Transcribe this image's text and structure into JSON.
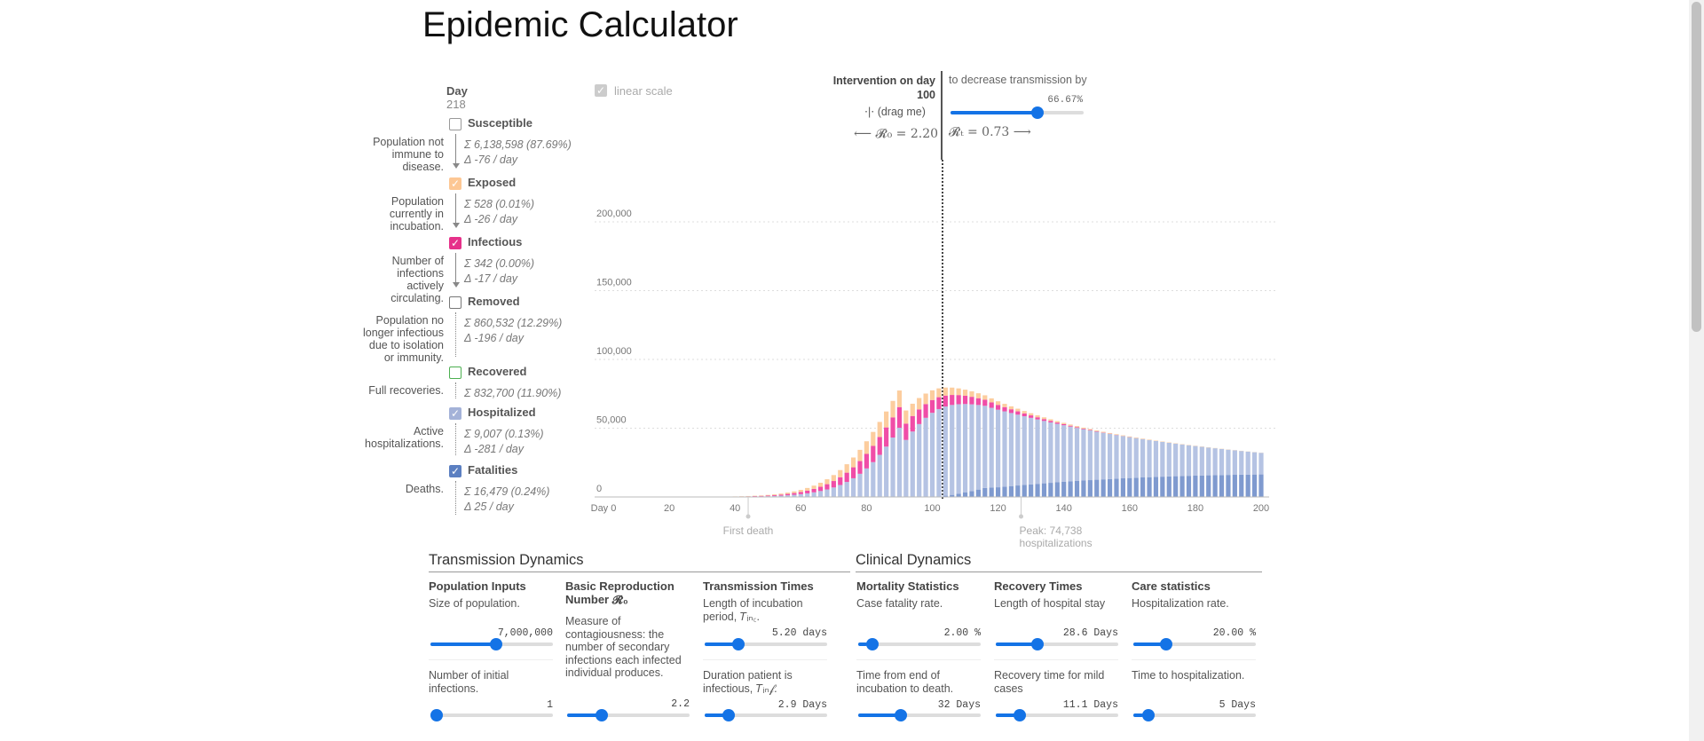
{
  "title": "Epidemic Calculator",
  "day": {
    "label": "Day",
    "value": "218"
  },
  "compartments": [
    {
      "name": "Susceptible",
      "desc": "Population not immune to disease.",
      "total": "6,138,598 (87.69%)",
      "delta": "-76 / day",
      "checked": false,
      "color": "#ffffff",
      "border": "#999999"
    },
    {
      "name": "Exposed",
      "desc": "Population currently in incubation.",
      "total": "528 (0.01%)",
      "delta": "-26 / day",
      "checked": true,
      "color": "#fdc794",
      "border": "#fdc794"
    },
    {
      "name": "Infectious",
      "desc": "Number of infections actively circulating.",
      "total": "342 (0.00%)",
      "delta": "-17 / day",
      "checked": true,
      "color": "#e6318a",
      "border": "#e6318a"
    },
    {
      "name": "Removed",
      "desc": "Population no longer infectious due to isolation or immunity.",
      "total": "860,532 (12.29%)",
      "delta": "-196 / day",
      "checked": false,
      "color": "#ffffff",
      "border": "#777777"
    },
    {
      "name": "Recovered",
      "desc": "Full recoveries.",
      "total": "832,700 (11.90%)",
      "delta": "",
      "checked": false,
      "color": "#ffffff",
      "border": "#4caf50"
    },
    {
      "name": "Hospitalized",
      "desc": "Active hospitalizations.",
      "total": "9,007 (0.13%)",
      "delta": "-281 / day",
      "checked": true,
      "color": "#a4b2d8",
      "border": "#a4b2d8"
    },
    {
      "name": "Fatalities",
      "desc": "Deaths.",
      "total": "16,479 (0.24%)",
      "delta": "25 / day",
      "checked": true,
      "color": "#5b7fc1",
      "border": "#5b7fc1"
    }
  ],
  "icons": {
    "check": "check-icon",
    "sum": "sigma-icon",
    "delta": "delta-icon",
    "drag": "drag-handle-icon"
  },
  "chart_controls": {
    "linear_scale": "linear scale",
    "linear_checked": true
  },
  "intervention": {
    "label": "Intervention on day",
    "day": "100",
    "drag_hint": "(drag me)",
    "decrease_text": "to decrease transmission by",
    "decrease_value": "66.67%",
    "decrease_fraction": 0.6667,
    "r0_text": "⟵ 𝓡₀ = 2.20",
    "rt_text": "𝓡ₜ = 0.73 ⟶"
  },
  "chart_data": {
    "type": "bar",
    "stacked": true,
    "x_tick_labels": [
      "Day 0",
      "20",
      "40",
      "60",
      "80",
      "100",
      "120",
      "140",
      "160",
      "180",
      "200"
    ],
    "y_tick_labels": [
      "200,000",
      "150,000",
      "100,000",
      "50,000",
      "0"
    ],
    "xlim": [
      0,
      200
    ],
    "ylim": [
      0,
      245000
    ],
    "x_step": 2,
    "series": [
      {
        "name": "Fatalities",
        "color": "#7f9acf",
        "values": [
          0,
          0,
          0,
          0,
          0,
          0,
          0,
          0,
          0,
          0,
          0,
          0,
          0,
          0,
          0,
          0,
          0,
          0,
          0,
          0,
          0,
          0,
          0,
          0,
          0,
          0,
          0,
          0,
          0,
          0,
          0,
          0,
          0,
          0,
          0,
          0,
          0,
          0,
          0,
          0,
          0,
          0,
          0,
          0,
          0,
          0,
          4,
          13,
          38,
          97,
          244,
          497,
          913,
          1514,
          2293,
          3226,
          4264,
          5382,
          6564,
          6815,
          7047,
          7493,
          7926,
          8347,
          8757,
          9156,
          9544,
          9921,
          10286,
          10640,
          10982,
          11313,
          11632,
          11940,
          12236,
          12520,
          12793,
          13055,
          13305,
          13545,
          13773,
          13991,
          14198,
          14395,
          14582,
          14759,
          14926,
          15083,
          15231,
          15370,
          15500,
          15622,
          15736,
          15843,
          15942,
          16034,
          16119,
          16198,
          16270,
          16337,
          16398
        ]
      },
      {
        "name": "Hospitalized",
        "color": "#b5c3e3",
        "values": [
          0,
          0,
          0,
          0,
          0,
          0,
          0,
          0,
          0,
          0,
          0,
          0,
          0,
          0,
          0,
          0,
          0,
          0,
          0,
          0,
          0,
          0,
          0,
          0,
          0,
          0,
          0,
          0,
          0,
          0,
          0,
          0,
          0,
          0,
          0,
          0,
          0,
          0,
          0,
          0,
          0,
          0,
          0,
          0,
          0,
          0,
          0,
          0,
          0,
          0,
          0,
          0,
          0,
          0,
          0,
          0,
          0,
          0,
          0,
          0,
          0,
          0,
          0,
          0,
          0,
          0,
          0,
          0,
          0,
          0,
          0,
          0,
          0,
          0,
          0,
          0,
          0,
          0,
          0,
          0,
          0,
          0,
          0,
          0,
          0,
          0,
          0,
          0,
          0,
          0,
          0,
          0,
          0,
          0,
          0,
          0,
          0,
          0,
          0,
          0,
          0
        ]
      },
      {
        "name": "Removed",
        "color": "#b5c3e3",
        "values": [
          0,
          0,
          0,
          0,
          0,
          0,
          1,
          1,
          2,
          3,
          5,
          7,
          10,
          15,
          21,
          29,
          40,
          55,
          75,
          101,
          136,
          181,
          240,
          318,
          419,
          550,
          720,
          939,
          1221,
          1582,
          2042,
          2626,
          3363,
          4291,
          5454,
          6902,
          8694,
          10901,
          13594,
          16850,
          20741,
          25322,
          30616,
          36601,
          43204,
          50291,
          41446,
          47553,
          52947,
          57437,
          60929,
          63393,
          64838,
          65358,
          65136,
          64336,
          63075,
          61486,
          59700,
          58015,
          56375,
          54730,
          53099,
          51487,
          49903,
          48351,
          46835,
          45356,
          43916,
          42516,
          41157,
          39838,
          38559,
          37321,
          36122,
          34962,
          33840,
          32755,
          31706,
          30691,
          29710,
          28761,
          27844,
          26958,
          26101,
          25273,
          24473,
          23699,
          22951,
          22228,
          21529,
          20854,
          20200,
          19568,
          18957,
          18366,
          17794,
          17241,
          16706,
          16188,
          15687
        ]
      },
      {
        "name": "Infectious",
        "color": "#f04da7",
        "values": [
          1,
          1,
          1,
          1,
          2,
          2,
          3,
          4,
          5,
          7,
          9,
          12,
          15,
          20,
          27,
          35,
          46,
          60,
          78,
          102,
          132,
          171,
          221,
          285,
          367,
          472,
          606,
          775,
          989,
          1256,
          1589,
          2000,
          2503,
          3111,
          3836,
          4686,
          5664,
          6765,
          7968,
          9245,
          10548,
          11817,
          12980,
          13957,
          14669,
          15045,
          11894,
          11300,
          10660,
          9992,
          9310,
          8626,
          7950,
          7290,
          6654,
          6046,
          5468,
          4925,
          4417,
          3944,
          3507,
          3103,
          2733,
          2394,
          2086,
          1806,
          1553,
          1326,
          1123,
          943,
          784,
          646,
          527,
          426,
          341,
          270,
          212,
          165,
          127,
          97,
          74,
          56,
          42,
          31,
          23,
          17,
          12,
          9,
          6,
          4,
          3,
          2,
          1,
          1,
          1,
          0,
          0,
          0,
          0,
          0,
          0
        ]
      },
      {
        "name": "Exposed",
        "color": "#fccd9e",
        "values": [
          0,
          1,
          1,
          1,
          2,
          2,
          3,
          4,
          5,
          6,
          8,
          11,
          14,
          19,
          25,
          33,
          43,
          57,
          74,
          97,
          127,
          165,
          214,
          277,
          358,
          460,
          589,
          752,
          956,
          1211,
          1526,
          1911,
          2376,
          2931,
          3583,
          4336,
          5188,
          6128,
          7134,
          8173,
          9198,
          10150,
          10966,
          11584,
          11956,
          12050,
          9515,
          8907,
          8277,
          7646,
          7029,
          6435,
          5871,
          5342,
          4850,
          4394,
          3975,
          3591,
          3241,
          2922,
          2634,
          2374,
          2139,
          1928,
          1739,
          1569,
          1418,
          1283,
          1162,
          1055,
          959,
          874,
          798,
          730,
          669,
          615,
          566,
          522,
          482,
          446,
          413,
          383,
          356,
          331,
          308,
          287,
          268,
          250,
          233,
          218,
          203,
          190,
          178,
          166,
          155,
          145,
          136,
          127,
          119,
          111,
          104
        ]
      }
    ],
    "annotations": [
      {
        "text": "First death",
        "x": 44
      },
      {
        "text": "Peak: 74,738 hospitalizations",
        "x": 127
      }
    ]
  },
  "transmission": {
    "header": "Transmission Dynamics",
    "population": {
      "title": "Population Inputs",
      "desc": "Size of population.",
      "value": "7,000,000",
      "fraction": 0.54
    },
    "initial": {
      "desc": "Number of initial infections.",
      "value": "1",
      "fraction": 0.0
    },
    "r0": {
      "title": "Basic Reproduction Number 𝓡₀",
      "desc": "Measure of contagiousness: the number of secondary infections each infected individual produces.",
      "value": "2.2",
      "fraction": 0.26
    },
    "times": {
      "title": "Transmission Times",
      "desc1": "Length of incubation period, 𝑇ᵢₙ꜀.",
      "value1": "5.20 days",
      "fraction1": 0.25,
      "desc2": "Duration patient is infectious, 𝑇ᵢₙ𝒻.",
      "value2": "2.9 Days",
      "fraction2": 0.16
    }
  },
  "clinical": {
    "header": "Clinical Dynamics",
    "mortality": {
      "title": "Mortality Statistics",
      "desc1": "Case fatality rate.",
      "value1": "2.00 %",
      "fraction1": 0.07,
      "desc2": "Time from end of incubation to death.",
      "value2": "32 Days",
      "fraction2": 0.33
    },
    "recovery": {
      "title": "Recovery Times",
      "desc1": "Length of hospital stay",
      "value1": "28.6 Days",
      "fraction1": 0.32,
      "desc2": "Recovery time for mild cases",
      "value2": "11.1 Days",
      "fraction2": 0.16
    },
    "care": {
      "title": "Care statistics",
      "desc1": "Hospitalization rate.",
      "value1": "20.00 %",
      "fraction1": 0.24,
      "desc2": "Time to hospitalization.",
      "value2": "5 Days",
      "fraction2": 0.08
    }
  }
}
